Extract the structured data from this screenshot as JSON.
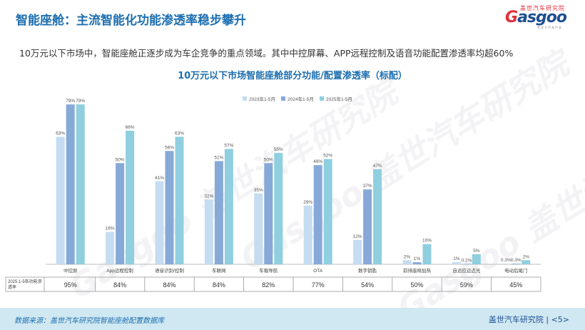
{
  "header": {
    "title": "智能座舱：主流智能化功能渗透率稳步攀升",
    "subtitle": "10万元以下市场中，智能座舱正逐步成为车企竞争的重点领域。其中中控屏幕、APP远程控制及语音功能配置渗透率均超60%",
    "logo_cn": "盖世汽车研究院",
    "logo_en_g": "G",
    "logo_en_rest": "asgoo",
    "logo_sub": "专注于汽车产业"
  },
  "watermark": {
    "text": "Gasgoo 盖世汽车研究院"
  },
  "footer": {
    "source": "数据来源：盖世汽车研究院智能座舱配置数据库",
    "org": "盖世汽车研究院 |",
    "page": "<5>"
  },
  "colors": {
    "title_blue": "#1d6fb0",
    "series": [
      "#c5dcf1",
      "#86a9d8",
      "#8fcfdf"
    ],
    "grid": "#cfd6dd"
  },
  "chart_data": {
    "type": "bar",
    "title": "10万元以下市场智能座舱部分功能/配置渗透率（标配）",
    "categories": [
      "中控屏",
      "App远程控制",
      "语音识别/控制",
      "车联网",
      "车载导航",
      "OTA",
      "数字钥匙",
      "前排座椅加热",
      "自适应远近光",
      "电动后尾门"
    ],
    "series": [
      {
        "name": "2023年1-5月",
        "values": [
          63,
          16,
          41,
          32,
          35,
          29,
          12,
          2,
          1,
          0.3
        ],
        "labels": [
          "63%",
          "16%",
          "41%",
          "32%",
          "35%",
          "29%",
          "12%",
          "2%",
          "1%",
          "0.3%"
        ]
      },
      {
        "name": "2024年1-5月",
        "values": [
          79,
          50,
          56,
          51,
          50,
          49,
          37,
          1,
          0.2,
          0.3
        ],
        "labels": [
          "79%",
          "50%",
          "56%",
          "51%",
          "50%",
          "49%",
          "37%",
          "1%",
          "0.2%",
          "0.3%"
        ]
      },
      {
        "name": "2025年1-5月",
        "values": [
          79,
          66,
          63,
          57,
          55,
          52,
          47,
          10,
          5,
          2
        ],
        "labels": [
          "79%",
          "66%",
          "63%",
          "57%",
          "55%",
          "52%",
          "47%",
          "10%",
          "5%",
          "2%"
        ]
      }
    ],
    "ylim": [
      0,
      90
    ],
    "legend_position": "top-right",
    "table": {
      "row_label": "2025.1-5各功能渗透率",
      "values": [
        "95%",
        "84%",
        "84%",
        "84%",
        "82%",
        "77%",
        "54%",
        "50%",
        "59%",
        "45%"
      ]
    }
  }
}
